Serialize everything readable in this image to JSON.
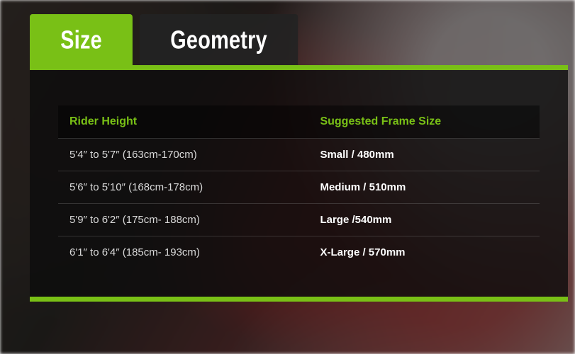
{
  "colors": {
    "accent": "#79c016",
    "tab_inactive_bg": "rgba(35,35,35,0.92)",
    "panel_bg": "rgba(12,12,12,0.80)",
    "header_text": "#79c016",
    "body_text": "#d9d9d9",
    "frame_text": "#ffffff"
  },
  "tabs": [
    {
      "label": "Size",
      "active": true
    },
    {
      "label": "Geometry",
      "active": false
    }
  ],
  "table": {
    "columns": [
      "Rider Height",
      "Suggested Frame Size"
    ],
    "rows": [
      [
        "5'4″ to 5'7″ (163cm-170cm)",
        "Small / 480mm"
      ],
      [
        "5'6″ to 5'10″ (168cm-178cm)",
        "Medium / 510mm"
      ],
      [
        "5'9″ to 6'2″ (175cm- 188cm)",
        "Large /540mm"
      ],
      [
        "6'1″ to 6'4″ (185cm- 193cm)",
        "X-Large / 570mm"
      ]
    ]
  }
}
